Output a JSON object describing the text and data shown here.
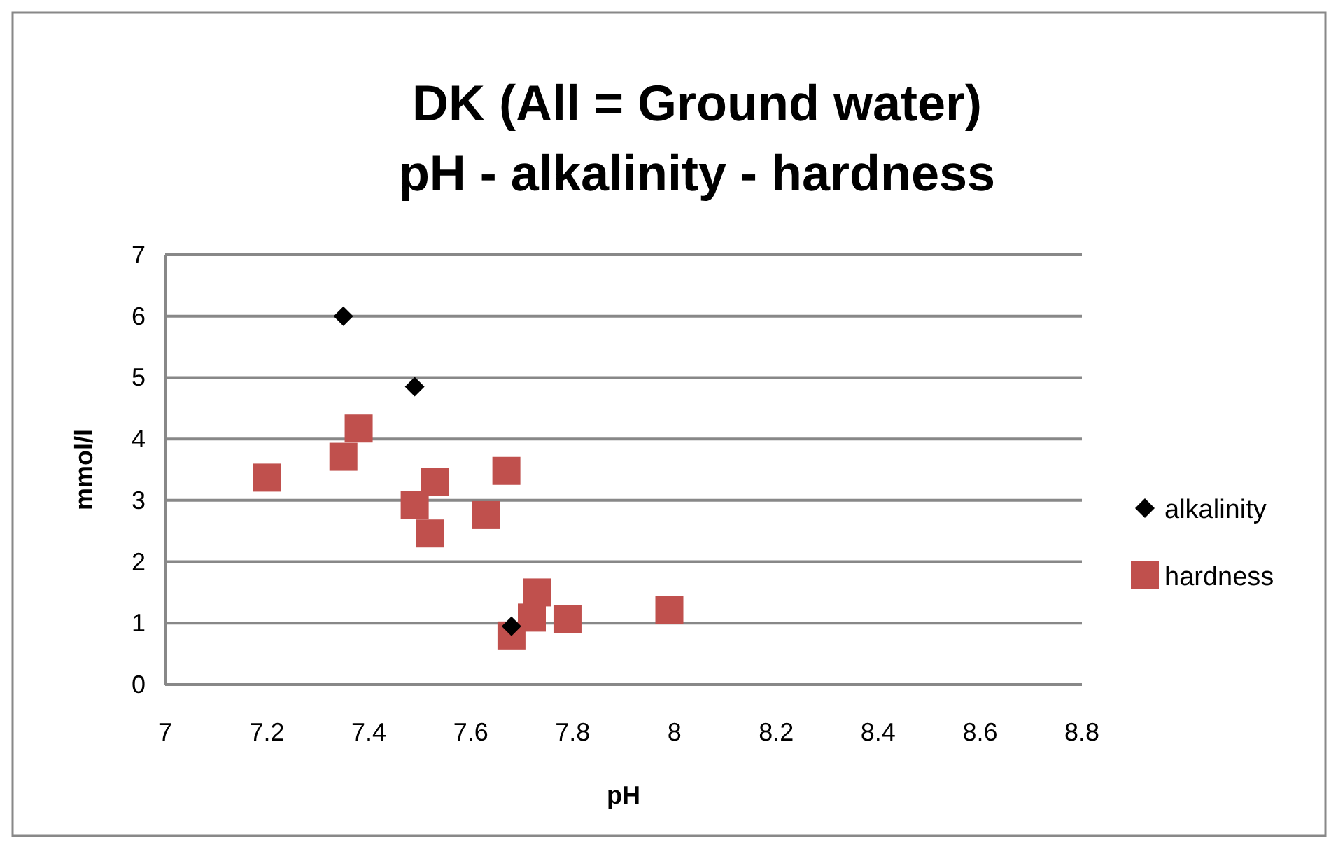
{
  "chart_data": {
    "type": "scatter",
    "title": "DK (All = Ground water)\npH - alkalinity - hardness",
    "xlabel": "pH",
    "ylabel": "mmol/l",
    "xlim": [
      7,
      8.8
    ],
    "xticks": [
      7,
      7.2,
      7.4,
      7.6,
      7.8,
      8,
      8.2,
      8.4,
      8.6,
      8.8
    ],
    "ylim": [
      0,
      7
    ],
    "yticks": [
      0,
      1,
      2,
      3,
      4,
      5,
      6,
      7
    ],
    "grid": "y",
    "legend": "right",
    "series": [
      {
        "name": "alkalinity",
        "color": "#000000",
        "marker": "diamond",
        "x": [
          7.35,
          7.49,
          7.68
        ],
        "values": [
          6,
          4.85,
          0.95
        ]
      },
      {
        "name": "hardness",
        "color": "#c0504d",
        "marker": "square",
        "x": [
          7.2,
          7.38,
          7.35,
          7.53,
          7.49,
          7.52,
          7.67,
          7.63,
          7.73,
          7.72,
          7.68,
          7.79,
          7.99
        ],
        "values": [
          3.37,
          4.17,
          3.71,
          3.3,
          2.92,
          2.46,
          3.48,
          2.76,
          1.5,
          1.09,
          0.8,
          1.07,
          1.21
        ]
      }
    ]
  }
}
